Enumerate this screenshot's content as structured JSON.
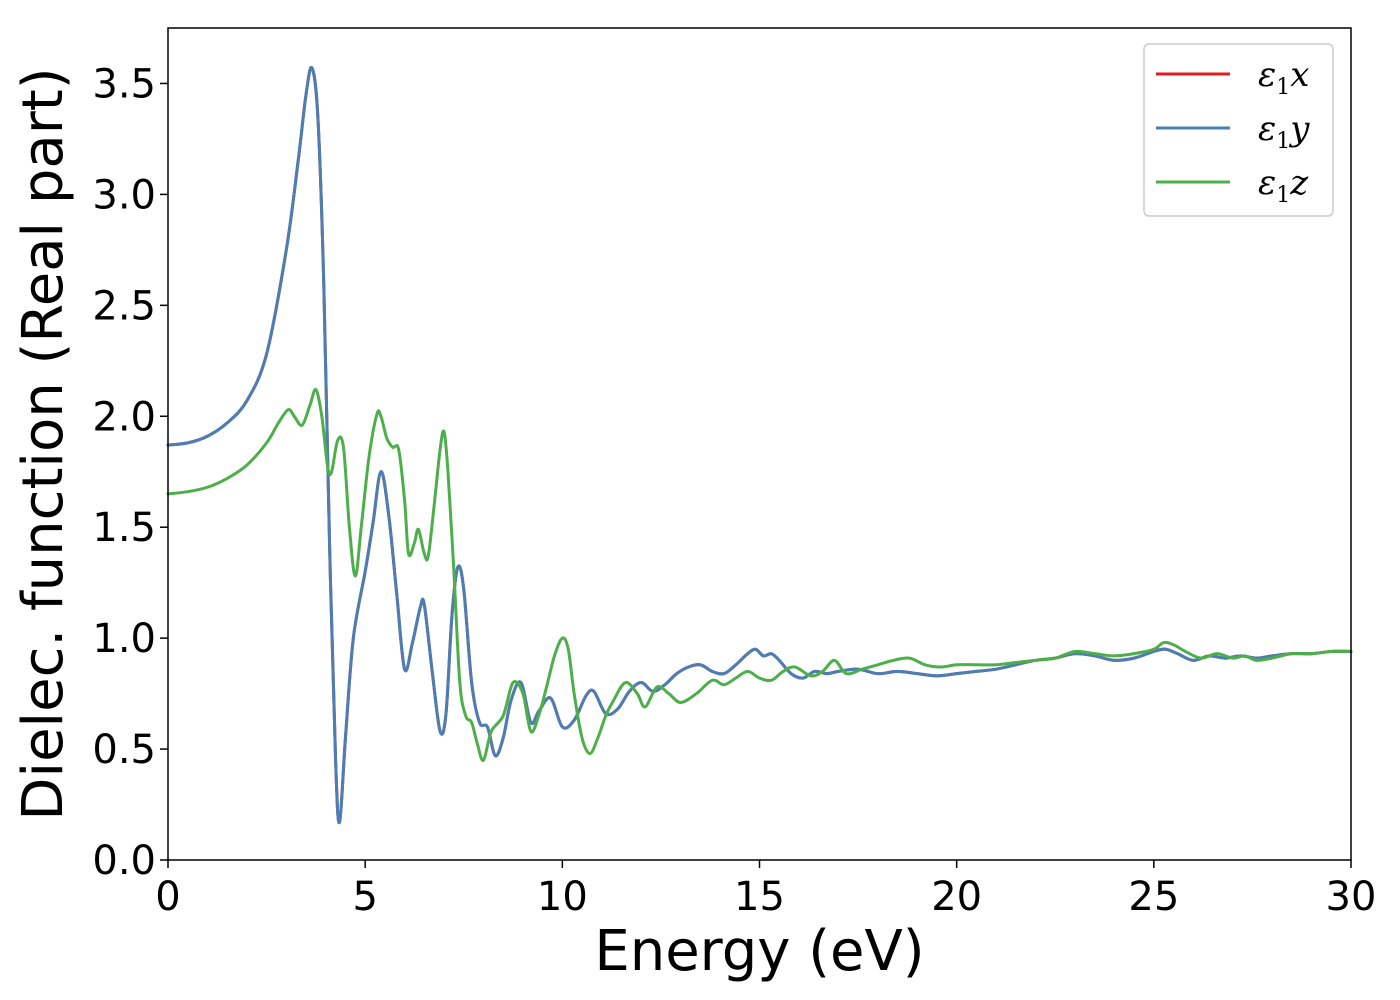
{
  "chart_data": {
    "type": "line",
    "xlabel": "Energy (eV)",
    "ylabel": "Dielec. function (Real part)",
    "xlim": [
      0,
      30
    ],
    "ylim": [
      0,
      3.75
    ],
    "xticks": [
      0,
      5,
      10,
      15,
      20,
      25,
      30
    ],
    "yticks": [
      0.0,
      0.5,
      1.0,
      1.5,
      2.0,
      2.5,
      3.0,
      3.5
    ],
    "xtick_labels": [
      "0",
      "5",
      "10",
      "15",
      "20",
      "25",
      "30"
    ],
    "ytick_labels": [
      "0.0",
      "0.5",
      "1.0",
      "1.5",
      "2.0",
      "2.5",
      "3.0",
      "3.5"
    ],
    "grid": false,
    "legend_position": "top-right",
    "series": [
      {
        "name": "ε1x",
        "legend_base": "ε",
        "legend_sub": "1",
        "legend_suffix": "x",
        "color": "#e41a1c",
        "x": [
          0,
          0.5,
          1,
          1.5,
          2,
          2.5,
          3,
          3.3,
          3.5,
          3.65,
          3.8,
          3.95,
          4.1,
          4.25,
          4.35,
          4.5,
          4.7,
          5,
          5.2,
          5.4,
          5.6,
          5.8,
          6,
          6.2,
          6.4,
          6.5,
          6.7,
          6.9,
          7.05,
          7.2,
          7.35,
          7.5,
          7.7,
          7.9,
          8.1,
          8.3,
          8.5,
          8.7,
          8.95,
          9.2,
          9.4,
          9.7,
          10,
          10.3,
          10.6,
          10.8,
          11.1,
          11.4,
          11.7,
          12,
          12.3,
          12.6,
          12.9,
          13.2,
          13.5,
          13.8,
          14.1,
          14.4,
          14.7,
          14.9,
          15.1,
          15.3,
          15.5,
          15.8,
          16.1,
          16.4,
          16.7,
          17,
          17.5,
          18,
          18.5,
          19,
          19.5,
          20,
          20.5,
          21,
          21.5,
          22,
          22.5,
          23,
          23.5,
          24,
          24.5,
          25,
          25.3,
          25.6,
          26,
          26.4,
          26.8,
          27.2,
          27.6,
          28,
          28.5,
          29,
          29.5,
          30
        ],
        "y": [
          1.87,
          1.88,
          1.91,
          1.97,
          2.07,
          2.28,
          2.75,
          3.15,
          3.45,
          3.57,
          3.35,
          2.6,
          1.4,
          0.45,
          0.17,
          0.55,
          1.0,
          1.3,
          1.52,
          1.75,
          1.55,
          1.2,
          0.86,
          0.98,
          1.14,
          1.15,
          0.85,
          0.58,
          0.66,
          1.1,
          1.32,
          1.22,
          0.8,
          0.62,
          0.6,
          0.47,
          0.55,
          0.72,
          0.8,
          0.62,
          0.67,
          0.73,
          0.6,
          0.63,
          0.74,
          0.76,
          0.66,
          0.68,
          0.76,
          0.8,
          0.76,
          0.79,
          0.84,
          0.87,
          0.88,
          0.85,
          0.84,
          0.88,
          0.93,
          0.95,
          0.92,
          0.93,
          0.9,
          0.84,
          0.82,
          0.85,
          0.84,
          0.85,
          0.86,
          0.84,
          0.85,
          0.84,
          0.83,
          0.84,
          0.85,
          0.86,
          0.88,
          0.9,
          0.91,
          0.93,
          0.92,
          0.9,
          0.91,
          0.94,
          0.95,
          0.93,
          0.9,
          0.92,
          0.91,
          0.92,
          0.91,
          0.92,
          0.93,
          0.93,
          0.94,
          0.94
        ]
      },
      {
        "name": "ε1y",
        "legend_base": "ε",
        "legend_sub": "1",
        "legend_suffix": "y",
        "color": "#4a7fb5",
        "x": [
          0,
          0.5,
          1,
          1.5,
          2,
          2.5,
          3,
          3.3,
          3.5,
          3.65,
          3.8,
          3.95,
          4.1,
          4.25,
          4.35,
          4.5,
          4.7,
          5,
          5.2,
          5.4,
          5.6,
          5.8,
          6,
          6.2,
          6.4,
          6.5,
          6.7,
          6.9,
          7.05,
          7.2,
          7.35,
          7.5,
          7.7,
          7.9,
          8.1,
          8.3,
          8.5,
          8.7,
          8.95,
          9.2,
          9.4,
          9.7,
          10,
          10.3,
          10.6,
          10.8,
          11.1,
          11.4,
          11.7,
          12,
          12.3,
          12.6,
          12.9,
          13.2,
          13.5,
          13.8,
          14.1,
          14.4,
          14.7,
          14.9,
          15.1,
          15.3,
          15.5,
          15.8,
          16.1,
          16.4,
          16.7,
          17,
          17.5,
          18,
          18.5,
          19,
          19.5,
          20,
          20.5,
          21,
          21.5,
          22,
          22.5,
          23,
          23.5,
          24,
          24.5,
          25,
          25.3,
          25.6,
          26,
          26.4,
          26.8,
          27.2,
          27.6,
          28,
          28.5,
          29,
          29.5,
          30
        ],
        "y": [
          1.87,
          1.88,
          1.91,
          1.97,
          2.07,
          2.28,
          2.75,
          3.15,
          3.45,
          3.57,
          3.35,
          2.6,
          1.4,
          0.45,
          0.17,
          0.55,
          1.0,
          1.3,
          1.52,
          1.75,
          1.55,
          1.2,
          0.86,
          0.98,
          1.14,
          1.15,
          0.85,
          0.58,
          0.66,
          1.1,
          1.32,
          1.22,
          0.8,
          0.62,
          0.6,
          0.47,
          0.55,
          0.72,
          0.8,
          0.62,
          0.67,
          0.73,
          0.6,
          0.63,
          0.74,
          0.76,
          0.66,
          0.68,
          0.76,
          0.8,
          0.76,
          0.79,
          0.84,
          0.87,
          0.88,
          0.85,
          0.84,
          0.88,
          0.93,
          0.95,
          0.92,
          0.93,
          0.9,
          0.84,
          0.82,
          0.85,
          0.84,
          0.85,
          0.86,
          0.84,
          0.85,
          0.84,
          0.83,
          0.84,
          0.85,
          0.86,
          0.88,
          0.9,
          0.91,
          0.93,
          0.92,
          0.9,
          0.91,
          0.94,
          0.95,
          0.93,
          0.9,
          0.92,
          0.91,
          0.92,
          0.91,
          0.92,
          0.93,
          0.93,
          0.94,
          0.94
        ]
      },
      {
        "name": "ε1z",
        "legend_base": "ε",
        "legend_sub": "1",
        "legend_suffix": "z",
        "color": "#4daf4a",
        "x": [
          0,
          0.5,
          1,
          1.5,
          2,
          2.5,
          2.8,
          3.05,
          3.2,
          3.4,
          3.6,
          3.75,
          3.9,
          4.05,
          4.15,
          4.3,
          4.45,
          4.6,
          4.75,
          4.9,
          5.1,
          5.3,
          5.4,
          5.55,
          5.7,
          5.85,
          6,
          6.1,
          6.25,
          6.35,
          6.5,
          6.6,
          6.75,
          6.9,
          7,
          7.1,
          7.25,
          7.4,
          7.55,
          7.7,
          7.85,
          8,
          8.2,
          8.5,
          8.75,
          9,
          9.2,
          9.4,
          9.6,
          9.8,
          10,
          10.15,
          10.3,
          10.5,
          10.7,
          10.9,
          11.1,
          11.3,
          11.6,
          11.9,
          12.1,
          12.4,
          12.7,
          13,
          13.4,
          13.8,
          14.1,
          14.4,
          14.7,
          15,
          15.3,
          15.6,
          15.9,
          16.3,
          16.6,
          16.9,
          17.2,
          17.6,
          18,
          18.4,
          18.8,
          19.2,
          19.6,
          20,
          20.5,
          21,
          21.5,
          22,
          22.5,
          23,
          23.5,
          24,
          24.5,
          25,
          25.25,
          25.5,
          25.8,
          26.2,
          26.6,
          27,
          27.3,
          27.6,
          28,
          28.5,
          29,
          29.5,
          30
        ],
        "y": [
          1.65,
          1.66,
          1.68,
          1.72,
          1.78,
          1.88,
          1.97,
          2.03,
          2.0,
          1.96,
          2.05,
          2.12,
          2.0,
          1.77,
          1.75,
          1.89,
          1.86,
          1.5,
          1.28,
          1.5,
          1.82,
          2.01,
          2.0,
          1.9,
          1.86,
          1.85,
          1.62,
          1.38,
          1.43,
          1.49,
          1.38,
          1.37,
          1.6,
          1.85,
          1.93,
          1.75,
          1.3,
          0.8,
          0.65,
          0.62,
          0.52,
          0.45,
          0.58,
          0.65,
          0.8,
          0.75,
          0.58,
          0.65,
          0.78,
          0.92,
          1.0,
          0.95,
          0.75,
          0.55,
          0.48,
          0.55,
          0.65,
          0.72,
          0.8,
          0.75,
          0.69,
          0.78,
          0.75,
          0.71,
          0.75,
          0.81,
          0.79,
          0.82,
          0.85,
          0.82,
          0.81,
          0.85,
          0.87,
          0.83,
          0.85,
          0.9,
          0.84,
          0.86,
          0.88,
          0.9,
          0.91,
          0.88,
          0.87,
          0.88,
          0.88,
          0.88,
          0.89,
          0.9,
          0.91,
          0.94,
          0.93,
          0.92,
          0.93,
          0.95,
          0.98,
          0.97,
          0.94,
          0.91,
          0.93,
          0.91,
          0.92,
          0.9,
          0.91,
          0.93,
          0.93,
          0.94,
          0.94
        ]
      }
    ]
  }
}
